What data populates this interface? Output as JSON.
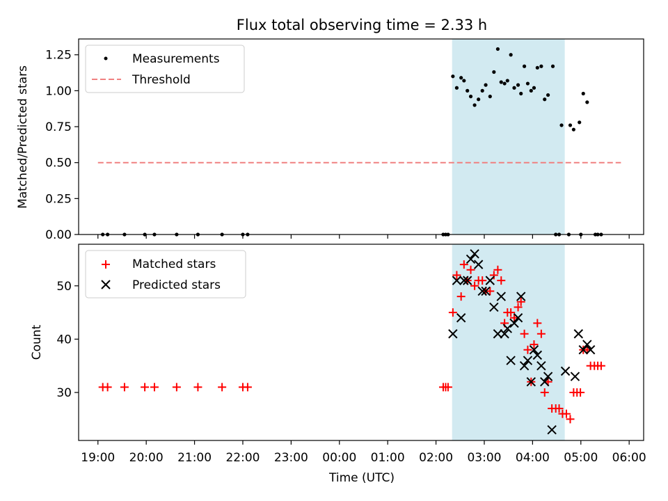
{
  "chart_data": [
    {
      "type": "scatter",
      "title": "Flux total observing time = 2.33 h",
      "ylabel": "Matched/Predicted stars",
      "ylim": [
        0,
        1.36
      ],
      "yticks": [
        "0.00",
        "0.25",
        "0.50",
        "0.75",
        "1.00",
        "1.25"
      ],
      "ytick_values": [
        0,
        0.25,
        0.5,
        0.75,
        1.0,
        1.25
      ],
      "legend_position": "top-left",
      "grid": false,
      "shaded_region": {
        "x_start": 7.3333,
        "x_end": 9.6667,
        "color": "#add8e6"
      },
      "series": [
        {
          "name": "Measurements",
          "marker": "dot",
          "color": "#000000",
          "points": [
            [
              0.1,
              0
            ],
            [
              0.2,
              0
            ],
            [
              0.55,
              0
            ],
            [
              0.97,
              0
            ],
            [
              1.17,
              0
            ],
            [
              1.63,
              0
            ],
            [
              2.07,
              0
            ],
            [
              2.57,
              0
            ],
            [
              3.0,
              0
            ],
            [
              3.1,
              0
            ],
            [
              7.15,
              0
            ],
            [
              7.2,
              0
            ],
            [
              7.25,
              0
            ],
            [
              7.35,
              1.1
            ],
            [
              7.43,
              1.02
            ],
            [
              7.52,
              1.09
            ],
            [
              7.58,
              1.07
            ],
            [
              7.65,
              1.0
            ],
            [
              7.72,
              0.96
            ],
            [
              7.8,
              0.9
            ],
            [
              7.88,
              0.94
            ],
            [
              7.96,
              1.0
            ],
            [
              8.03,
              1.04
            ],
            [
              8.12,
              0.96
            ],
            [
              8.2,
              1.13
            ],
            [
              8.28,
              1.29
            ],
            [
              8.35,
              1.06
            ],
            [
              8.42,
              1.05
            ],
            [
              8.48,
              1.07
            ],
            [
              8.55,
              1.25
            ],
            [
              8.62,
              1.02
            ],
            [
              8.7,
              1.04
            ],
            [
              8.76,
              0.98
            ],
            [
              8.83,
              1.17
            ],
            [
              8.9,
              1.05
            ],
            [
              8.97,
              1.0
            ],
            [
              9.03,
              1.02
            ],
            [
              9.1,
              1.16
            ],
            [
              9.18,
              1.17
            ],
            [
              9.25,
              0.94
            ],
            [
              9.32,
              0.97
            ],
            [
              9.42,
              1.17
            ],
            [
              9.48,
              0
            ],
            [
              9.55,
              0
            ],
            [
              9.6,
              0.76
            ],
            [
              9.78,
              0.76
            ],
            [
              9.85,
              0.73
            ],
            [
              9.97,
              0.78
            ],
            [
              10.05,
              0.98
            ],
            [
              10.13,
              0.92
            ],
            [
              9.75,
              0
            ],
            [
              10.0,
              0
            ],
            [
              10.3,
              0
            ],
            [
              10.35,
              0
            ],
            [
              10.42,
              0
            ]
          ]
        },
        {
          "name": "Threshold",
          "marker": "dashed-line",
          "color": "#f08080",
          "points": [
            [
              0,
              0.5
            ],
            [
              10.83,
              0.5
            ]
          ]
        }
      ]
    },
    {
      "type": "scatter",
      "xlabel": "Time (UTC)",
      "ylabel": "Count",
      "ylim": [
        21,
        57.8
      ],
      "yticks": [
        "30",
        "40",
        "50"
      ],
      "ytick_values": [
        30,
        40,
        50
      ],
      "xlim": [
        -0.4,
        11.3
      ],
      "xticks": [
        "19:00",
        "20:00",
        "21:00",
        "22:00",
        "23:00",
        "00:00",
        "01:00",
        "02:00",
        "03:00",
        "04:00",
        "05:00",
        "06:00"
      ],
      "xtick_values": [
        0,
        1,
        2,
        3,
        4,
        5,
        6,
        7,
        8,
        9,
        10,
        11
      ],
      "legend_position": "top-left",
      "grid": false,
      "shaded_region": {
        "x_start": 7.3333,
        "x_end": 9.6667,
        "color": "#add8e6"
      },
      "series": [
        {
          "name": "Matched stars",
          "marker": "plus",
          "color": "#ff0000",
          "points": [
            [
              0.1,
              31
            ],
            [
              0.2,
              31
            ],
            [
              0.55,
              31
            ],
            [
              0.97,
              31
            ],
            [
              1.17,
              31
            ],
            [
              1.63,
              31
            ],
            [
              2.07,
              31
            ],
            [
              2.57,
              31
            ],
            [
              3.0,
              31
            ],
            [
              3.1,
              31
            ],
            [
              7.15,
              31
            ],
            [
              7.2,
              31
            ],
            [
              7.25,
              31
            ],
            [
              7.35,
              45
            ],
            [
              7.43,
              52
            ],
            [
              7.52,
              48
            ],
            [
              7.58,
              54
            ],
            [
              7.65,
              51
            ],
            [
              7.72,
              53
            ],
            [
              7.8,
              50
            ],
            [
              7.88,
              51
            ],
            [
              7.96,
              51
            ],
            [
              8.03,
              49
            ],
            [
              8.12,
              49
            ],
            [
              8.2,
              52
            ],
            [
              8.28,
              53
            ],
            [
              8.35,
              51
            ],
            [
              8.42,
              43
            ],
            [
              8.48,
              45
            ],
            [
              8.55,
              45
            ],
            [
              8.62,
              44
            ],
            [
              8.7,
              46
            ],
            [
              8.76,
              47
            ],
            [
              8.83,
              41
            ],
            [
              8.9,
              38
            ],
            [
              8.97,
              32
            ],
            [
              9.03,
              39
            ],
            [
              9.1,
              43
            ],
            [
              9.18,
              41
            ],
            [
              9.25,
              30
            ],
            [
              9.32,
              32
            ],
            [
              9.4,
              27
            ],
            [
              9.48,
              27
            ],
            [
              9.55,
              27
            ],
            [
              9.62,
              26
            ],
            [
              9.7,
              26
            ],
            [
              9.78,
              25
            ],
            [
              9.85,
              30
            ],
            [
              9.92,
              30
            ],
            [
              9.99,
              30
            ],
            [
              10.05,
              38
            ],
            [
              10.13,
              38
            ],
            [
              10.2,
              35
            ],
            [
              10.28,
              35
            ],
            [
              10.35,
              35
            ],
            [
              10.42,
              35
            ]
          ]
        },
        {
          "name": "Predicted stars",
          "marker": "x",
          "color": "#000000",
          "points": [
            [
              7.35,
              41
            ],
            [
              7.43,
              51
            ],
            [
              7.52,
              44
            ],
            [
              7.58,
              51
            ],
            [
              7.65,
              51
            ],
            [
              7.72,
              55
            ],
            [
              7.8,
              56
            ],
            [
              7.88,
              54
            ],
            [
              7.96,
              49
            ],
            [
              8.03,
              49
            ],
            [
              8.12,
              51
            ],
            [
              8.2,
              46
            ],
            [
              8.28,
              41
            ],
            [
              8.35,
              48
            ],
            [
              8.42,
              41
            ],
            [
              8.48,
              42
            ],
            [
              8.55,
              36
            ],
            [
              8.62,
              43
            ],
            [
              8.7,
              44
            ],
            [
              8.76,
              48
            ],
            [
              8.83,
              35
            ],
            [
              8.9,
              36
            ],
            [
              8.97,
              32
            ],
            [
              9.03,
              38
            ],
            [
              9.1,
              37
            ],
            [
              9.18,
              35
            ],
            [
              9.25,
              32
            ],
            [
              9.32,
              33
            ],
            [
              9.4,
              23
            ],
            [
              9.68,
              34
            ],
            [
              9.88,
              33
            ],
            [
              9.95,
              41
            ],
            [
              10.05,
              38
            ],
            [
              10.13,
              39
            ],
            [
              10.2,
              38
            ]
          ]
        }
      ]
    }
  ]
}
